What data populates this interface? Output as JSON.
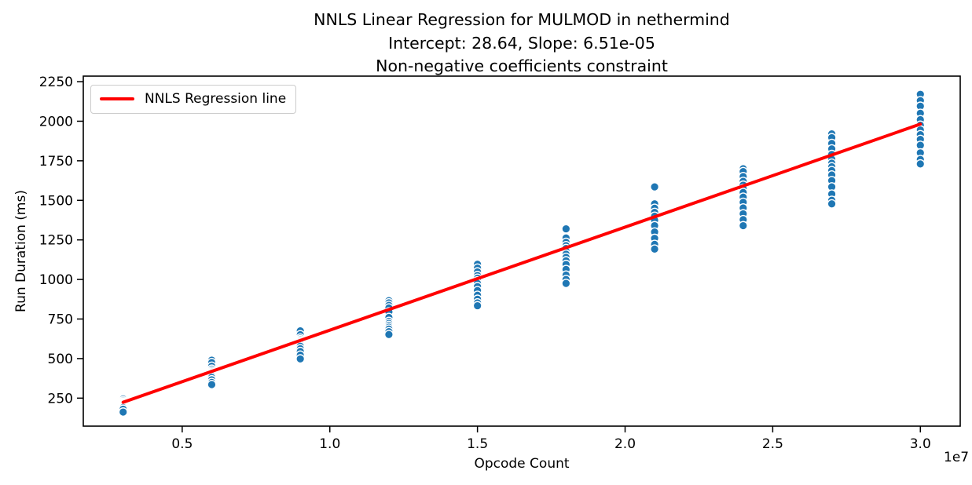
{
  "chart_data": {
    "type": "scatter",
    "title_lines": [
      "NNLS Linear Regression for MULMOD in nethermind",
      "Intercept: 28.64, Slope: 6.51e-05",
      "Non-negative coefficients constraint"
    ],
    "xlabel": "Opcode Count",
    "ylabel": "Run Duration (ms)",
    "x_offset_label": "1e7",
    "xlim": [
      1650000,
      31350000
    ],
    "ylim": [
      73,
      2285
    ],
    "x_ticks": [
      5000000,
      10000000,
      15000000,
      20000000,
      25000000,
      30000000
    ],
    "x_tick_labels": [
      "0.5",
      "1.0",
      "1.5",
      "2.0",
      "2.5",
      "3.0"
    ],
    "y_ticks": [
      250,
      500,
      750,
      1000,
      1250,
      1500,
      1750,
      2000,
      2250
    ],
    "y_tick_labels": [
      "250",
      "500",
      "750",
      "1000",
      "1250",
      "1500",
      "1750",
      "2000",
      "2250"
    ],
    "grid": false,
    "legend": {
      "label": "NNLS Regression line",
      "position": "upper left",
      "line_color": "#ff0000"
    },
    "regression": {
      "intercept": 28.64,
      "slope": 6.51e-05,
      "x_start": 3000000,
      "x_end": 30000000,
      "color": "#ff0000",
      "line_width": 4
    },
    "scatter": {
      "marker_color": "#1f77b4",
      "marker_edge_color": "#ffffff",
      "clusters": [
        {
          "x": 3000000,
          "y": [
            245,
            234,
            226,
            220,
            215,
            211,
            207,
            202,
            197,
            190,
            180,
            162
          ]
        },
        {
          "x": 6000000,
          "y": [
            490,
            475,
            452,
            433,
            422,
            414,
            407,
            399,
            391,
            381,
            366,
            349,
            336
          ]
        },
        {
          "x": 9000000,
          "y": [
            675,
            651,
            630,
            620,
            612,
            604,
            596,
            588,
            578,
            562,
            545,
            522,
            498
          ]
        },
        {
          "x": 12000000,
          "y": [
            866,
            852,
            836,
            820,
            795,
            760,
            735,
            722,
            710,
            698,
            686,
            670,
            652
          ]
        },
        {
          "x": 15000000,
          "y": [
            1096,
            1072,
            1048,
            1025,
            1008,
            992,
            975,
            955,
            930,
            900,
            875,
            852,
            834
          ]
        },
        {
          "x": 18000000,
          "y": [
            1320,
            1262,
            1235,
            1214,
            1196,
            1178,
            1160,
            1140,
            1118,
            1095,
            1063,
            1028,
            1000,
            975
          ]
        },
        {
          "x": 21000000,
          "y": [
            1585,
            1478,
            1450,
            1424,
            1400,
            1375,
            1340,
            1300,
            1260,
            1222,
            1192
          ]
        },
        {
          "x": 24000000,
          "y": [
            1700,
            1682,
            1650,
            1620,
            1596,
            1574,
            1550,
            1520,
            1488,
            1452,
            1415,
            1378,
            1340
          ]
        },
        {
          "x": 27000000,
          "y": [
            1920,
            1896,
            1860,
            1825,
            1790,
            1760,
            1735,
            1712,
            1688,
            1660,
            1625,
            1585,
            1540,
            1500,
            1478
          ]
        },
        {
          "x": 30000000,
          "y": [
            2170,
            2130,
            2095,
            2050,
            2010,
            1975,
            1945,
            1915,
            1885,
            1848,
            1800,
            1758,
            1730
          ]
        }
      ]
    }
  }
}
